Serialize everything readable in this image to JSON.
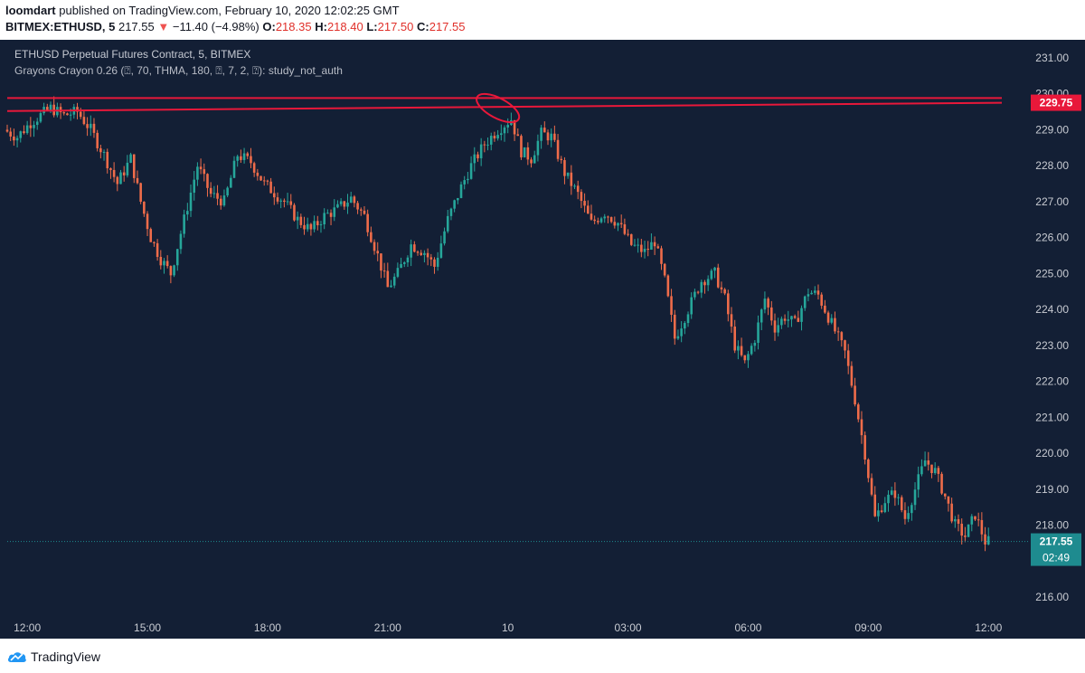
{
  "header": {
    "publisher": "loomdart",
    "published_text": "published on TradingView.com, February 10, 2020 12:02:25 GMT",
    "symbol": "BITMEX:ETHUSD, 5",
    "last": "217.55",
    "change_arrow": "▼",
    "change": "−11.40 (−4.98%)",
    "o_label": "O:",
    "o": "218.35",
    "h_label": "H:",
    "h": "218.40",
    "l_label": "L:",
    "l": "217.50",
    "c_label": "C:",
    "c": "217.55"
  },
  "legend": {
    "title": "ETHUSD Perpetual Futures Contract, 5, BITMEX",
    "indicator": "Grayons Crayon 0.26 (⍰, 70, THMA, 180, ⍰, 7, 2, ⍰): study_not_auth"
  },
  "footer": {
    "brand": "TradingView"
  },
  "colors": {
    "background": "#131f35",
    "bull": "#26a69a",
    "bear": "#ef6c4a",
    "resistance": "#e8183a",
    "axis_text": "#c9ccd3",
    "price_tag_red": "#e8183a",
    "price_tag_teal": "#1e8b8f"
  },
  "chart_data": {
    "type": "candlestick",
    "timeframe": "5",
    "x_ticks": [
      "12:00",
      "15:00",
      "18:00",
      "21:00",
      "10",
      "03:00",
      "06:00",
      "09:00",
      "12:00"
    ],
    "y_ticks": [
      216,
      217,
      218,
      219,
      220,
      221,
      222,
      223,
      224,
      225,
      226,
      227,
      228,
      229,
      230,
      231
    ],
    "ylim": [
      215.2,
      231.5
    ],
    "xlim": [
      "09 11:30",
      "10 12:20"
    ],
    "resistance_lines": [
      {
        "from": [
          "09 11:30",
          229.88
        ],
        "to": [
          "10 12:20",
          229.88
        ]
      },
      {
        "from": [
          "09 11:30",
          229.52
        ],
        "to": [
          "10 12:20",
          229.75
        ]
      }
    ],
    "annotation_circle_center": [
      "09 23:45",
      229.6
    ],
    "marked_prices": [
      {
        "label": "229.75",
        "value": 229.75,
        "color": "red"
      },
      {
        "label": "217.55",
        "value": 217.55,
        "color": "teal",
        "countdown": "02:49"
      }
    ],
    "price_path": [
      [
        "09 11:30",
        229.0
      ],
      [
        "09 11:50",
        228.8
      ],
      [
        "09 12:10",
        229.2
      ],
      [
        "09 12:40",
        229.6
      ],
      [
        "09 13:00",
        229.4
      ],
      [
        "09 13:20",
        229.5
      ],
      [
        "09 13:40",
        229.0
      ],
      [
        "09 14:00",
        228.3
      ],
      [
        "09 14:20",
        227.5
      ],
      [
        "09 14:40",
        228.2
      ],
      [
        "09 14:55",
        227.0
      ],
      [
        "09 15:10",
        226.0
      ],
      [
        "09 15:25",
        225.4
      ],
      [
        "09 15:40",
        225.0
      ],
      [
        "09 16:00",
        226.5
      ],
      [
        "09 16:20",
        228.0
      ],
      [
        "09 16:40",
        227.2
      ],
      [
        "09 17:00",
        227.0
      ],
      [
        "09 17:20",
        228.3
      ],
      [
        "09 17:40",
        228.1
      ],
      [
        "09 18:00",
        227.5
      ],
      [
        "09 18:30",
        227.0
      ],
      [
        "09 18:50",
        226.5
      ],
      [
        "09 19:10",
        226.2
      ],
      [
        "09 19:30",
        226.6
      ],
      [
        "09 19:50",
        226.8
      ],
      [
        "09 20:10",
        227.1
      ],
      [
        "09 20:30",
        226.6
      ],
      [
        "09 20:50",
        225.5
      ],
      [
        "09 21:05",
        224.6
      ],
      [
        "09 21:20",
        225.0
      ],
      [
        "09 21:40",
        225.8
      ],
      [
        "09 22:00",
        225.6
      ],
      [
        "09 22:15",
        225.2
      ],
      [
        "09 22:35",
        226.5
      ],
      [
        "09 22:55",
        227.4
      ],
      [
        "09 23:10",
        228.0
      ],
      [
        "09 23:30",
        228.6
      ],
      [
        "09 23:50",
        229.0
      ],
      [
        "10 00:10",
        229.3
      ],
      [
        "10 00:25",
        228.4
      ],
      [
        "10 00:40",
        228.2
      ],
      [
        "10 00:55",
        228.9
      ],
      [
        "10 01:10",
        228.8
      ],
      [
        "10 01:30",
        227.8
      ],
      [
        "10 01:50",
        227.2
      ],
      [
        "10 02:10",
        226.4
      ],
      [
        "10 02:30",
        226.7
      ],
      [
        "10 02:50",
        226.4
      ],
      [
        "10 03:10",
        225.8
      ],
      [
        "10 03:30",
        225.6
      ],
      [
        "10 03:45",
        225.9
      ],
      [
        "10 04:00",
        224.8
      ],
      [
        "10 04:15",
        223.2
      ],
      [
        "10 04:35",
        224.0
      ],
      [
        "10 04:55",
        224.8
      ],
      [
        "10 05:15",
        225.0
      ],
      [
        "10 05:30",
        224.3
      ],
      [
        "10 05:45",
        223.0
      ],
      [
        "10 06:00",
        222.5
      ],
      [
        "10 06:15",
        223.2
      ],
      [
        "10 06:30",
        224.3
      ],
      [
        "10 06:45",
        223.5
      ],
      [
        "10 07:00",
        223.8
      ],
      [
        "10 07:15",
        223.6
      ],
      [
        "10 07:35",
        224.5
      ],
      [
        "10 07:50",
        224.4
      ],
      [
        "10 08:10",
        223.6
      ],
      [
        "10 08:30",
        222.8
      ],
      [
        "10 08:45",
        221.5
      ],
      [
        "10 09:00",
        220.0
      ],
      [
        "10 09:15",
        218.2
      ],
      [
        "10 09:30",
        218.7
      ],
      [
        "10 09:45",
        218.9
      ],
      [
        "10 10:00",
        218.2
      ],
      [
        "10 10:15",
        219.0
      ],
      [
        "10 10:30",
        219.8
      ],
      [
        "10 10:45",
        219.5
      ],
      [
        "10 11:00",
        218.8
      ],
      [
        "10 11:15",
        218.0
      ],
      [
        "10 11:30",
        217.7
      ],
      [
        "10 11:45",
        218.3
      ],
      [
        "10 12:00",
        217.55
      ]
    ]
  }
}
